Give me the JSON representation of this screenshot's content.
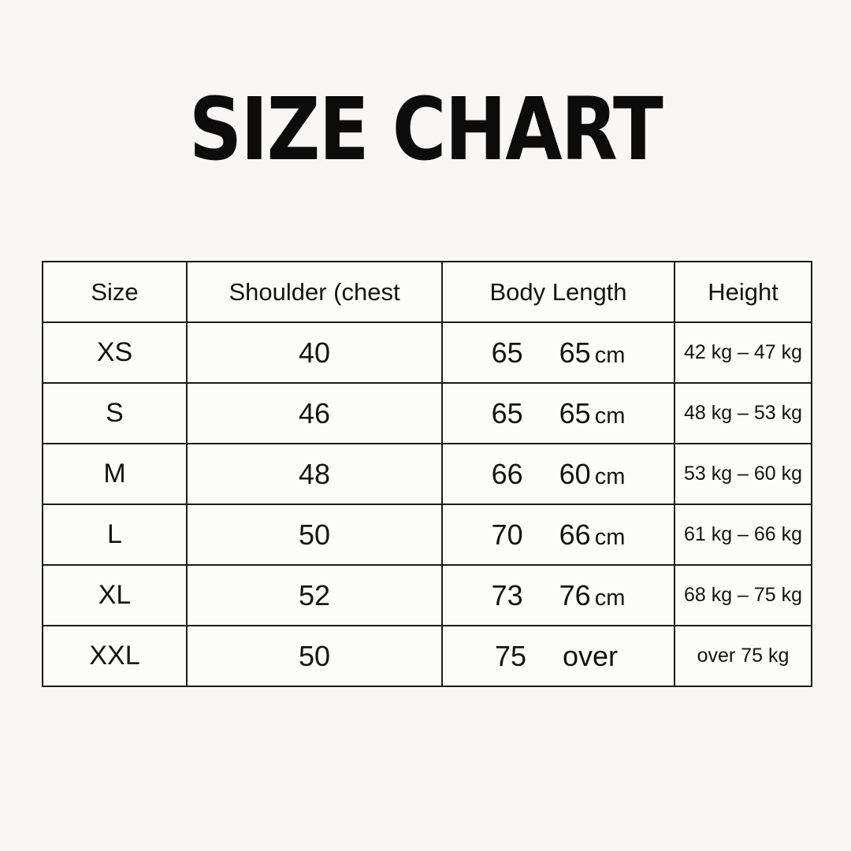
{
  "page": {
    "title": "SIZE CHART",
    "background_color": "#f8f7f5",
    "text_color": "#101010",
    "table_border_color": "#1b1b1b"
  },
  "table": {
    "headers": [
      "Size",
      "Shoulder (chest",
      "Body Length",
      "Height"
    ],
    "rows": [
      {
        "size": "XS",
        "shoulder": "40",
        "body1": "65",
        "body2": "65",
        "body2_unit": "cm",
        "height": "42 kg – 47 kg"
      },
      {
        "size": "S",
        "shoulder": "46",
        "body1": "65",
        "body2": "65",
        "body2_unit": "cm",
        "height": "48 kg – 53 kg"
      },
      {
        "size": "M",
        "shoulder": "48",
        "body1": "66",
        "body2": "60",
        "body2_unit": "cm",
        "height": "53 kg – 60 kg"
      },
      {
        "size": "L",
        "shoulder": "50",
        "body1": "70",
        "body2": "66",
        "body2_unit": "cm",
        "height": "61 kg – 66 kg"
      },
      {
        "size": "XL",
        "shoulder": "52",
        "body1": "73",
        "body2": "76",
        "body2_unit": "cm",
        "height": "68 kg – 75 kg"
      },
      {
        "size": "XXL",
        "shoulder": "50",
        "body1": "75",
        "body2": "over",
        "body2_unit": "",
        "height": "over 75 kg"
      }
    ]
  },
  "chart_data": {
    "type": "table",
    "title": "SIZE CHART",
    "columns": [
      "Size",
      "Shoulder (chest",
      "Body Length",
      "Height"
    ],
    "rows": [
      [
        "XS",
        "40",
        "65  65 cm",
        "42 kg – 47 kg"
      ],
      [
        "S",
        "46",
        "65  65 cm",
        "48 kg – 53 kg"
      ],
      [
        "M",
        "48",
        "66  60 cm",
        "53 kg – 60 kg"
      ],
      [
        "L",
        "50",
        "70  66 cm",
        "61 kg – 66 kg"
      ],
      [
        "XL",
        "52",
        "73  76 cm",
        "68 kg – 75 kg"
      ],
      [
        "XXL",
        "50",
        "75  over",
        "over 75 kg"
      ]
    ]
  }
}
